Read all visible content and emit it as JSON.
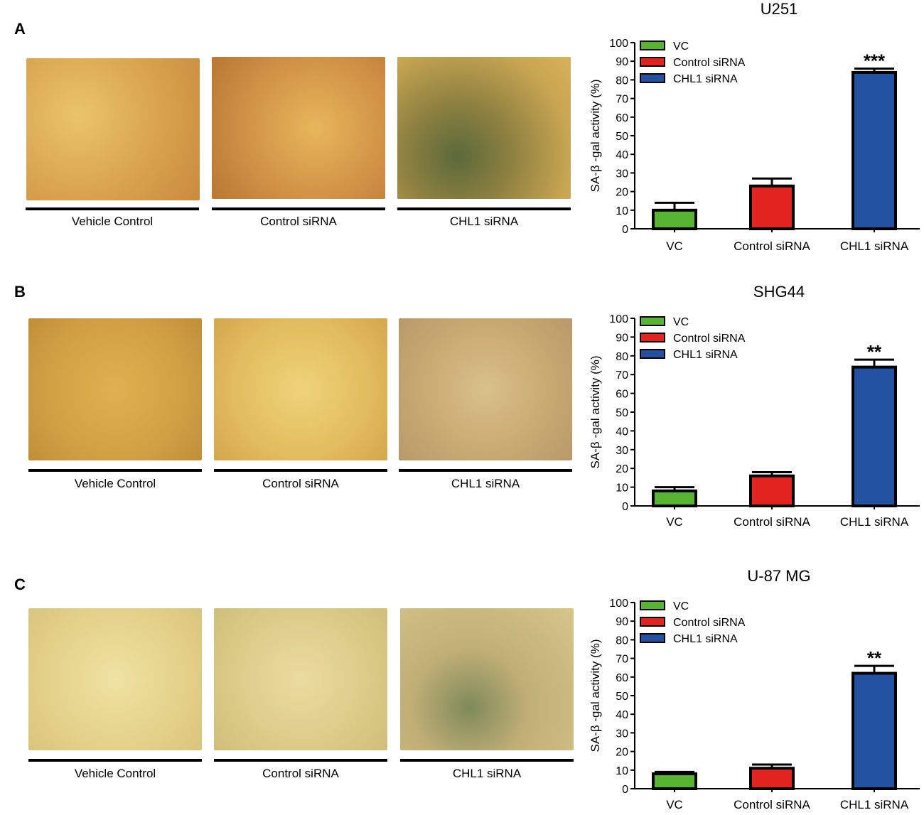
{
  "panels": [
    {
      "letter": "A",
      "images": [
        {
          "label": "Vehicle Control"
        },
        {
          "label": "Control siRNA"
        },
        {
          "label": "CHL1 siRNA"
        }
      ]
    },
    {
      "letter": "B",
      "images": [
        {
          "label": "Vehicle Control"
        },
        {
          "label": "Control siRNA"
        },
        {
          "label": "CHL1 siRNA"
        }
      ]
    },
    {
      "letter": "C",
      "images": [
        {
          "label": "Vehicle Control"
        },
        {
          "label": "Control siRNA"
        },
        {
          "label": "CHL1 siRNA"
        }
      ]
    }
  ],
  "chart_data": [
    {
      "type": "bar",
      "title": "U251",
      "ylabel": "SA-β -gal activity   (%)",
      "categories": [
        "VC",
        "Control siRNA",
        "CHL1 siRNA"
      ],
      "values": [
        10,
        23,
        84
      ],
      "errors": [
        4,
        4,
        2
      ],
      "colors": [
        "#58b531",
        "#e3231f",
        "#2352a2"
      ],
      "legend": [
        "VC",
        "Control siRNA",
        "CHL1 siRNA"
      ],
      "legend_position": "top-left",
      "annotations": [
        "",
        "",
        "***"
      ],
      "ylim": [
        0,
        100
      ],
      "yticks": [
        0,
        10,
        20,
        30,
        40,
        50,
        60,
        70,
        80,
        90,
        100
      ]
    },
    {
      "type": "bar",
      "title": "SHG44",
      "ylabel": "SA-β -gal activity   (%)",
      "categories": [
        "VC",
        "Control siRNA",
        "CHL1 siRNA"
      ],
      "values": [
        8,
        16,
        74
      ],
      "errors": [
        2,
        2,
        4
      ],
      "colors": [
        "#58b531",
        "#e3231f",
        "#2352a2"
      ],
      "legend": [
        "VC",
        "Control  siRNA",
        "CHL1 siRNA"
      ],
      "legend_position": "top-left",
      "annotations": [
        "",
        "",
        "**"
      ],
      "ylim": [
        0,
        100
      ],
      "yticks": [
        0,
        10,
        20,
        30,
        40,
        50,
        60,
        70,
        80,
        90,
        100
      ]
    },
    {
      "type": "bar",
      "title": "U-87 MG",
      "ylabel": "SA-β -gal activity   (%)",
      "categories": [
        "VC",
        "Control siRNA",
        "CHL1 siRNA"
      ],
      "values": [
        8,
        11,
        62
      ],
      "errors": [
        1,
        2,
        4
      ],
      "colors": [
        "#58b531",
        "#e3231f",
        "#2352a2"
      ],
      "legend": [
        "VC",
        "Control siRNA",
        "CHL1 siRNA"
      ],
      "legend_position": "top-left",
      "annotations": [
        "",
        "",
        "**"
      ],
      "ylim": [
        0,
        100
      ],
      "yticks": [
        0,
        10,
        20,
        30,
        40,
        50,
        60,
        70,
        80,
        90,
        100
      ]
    }
  ]
}
